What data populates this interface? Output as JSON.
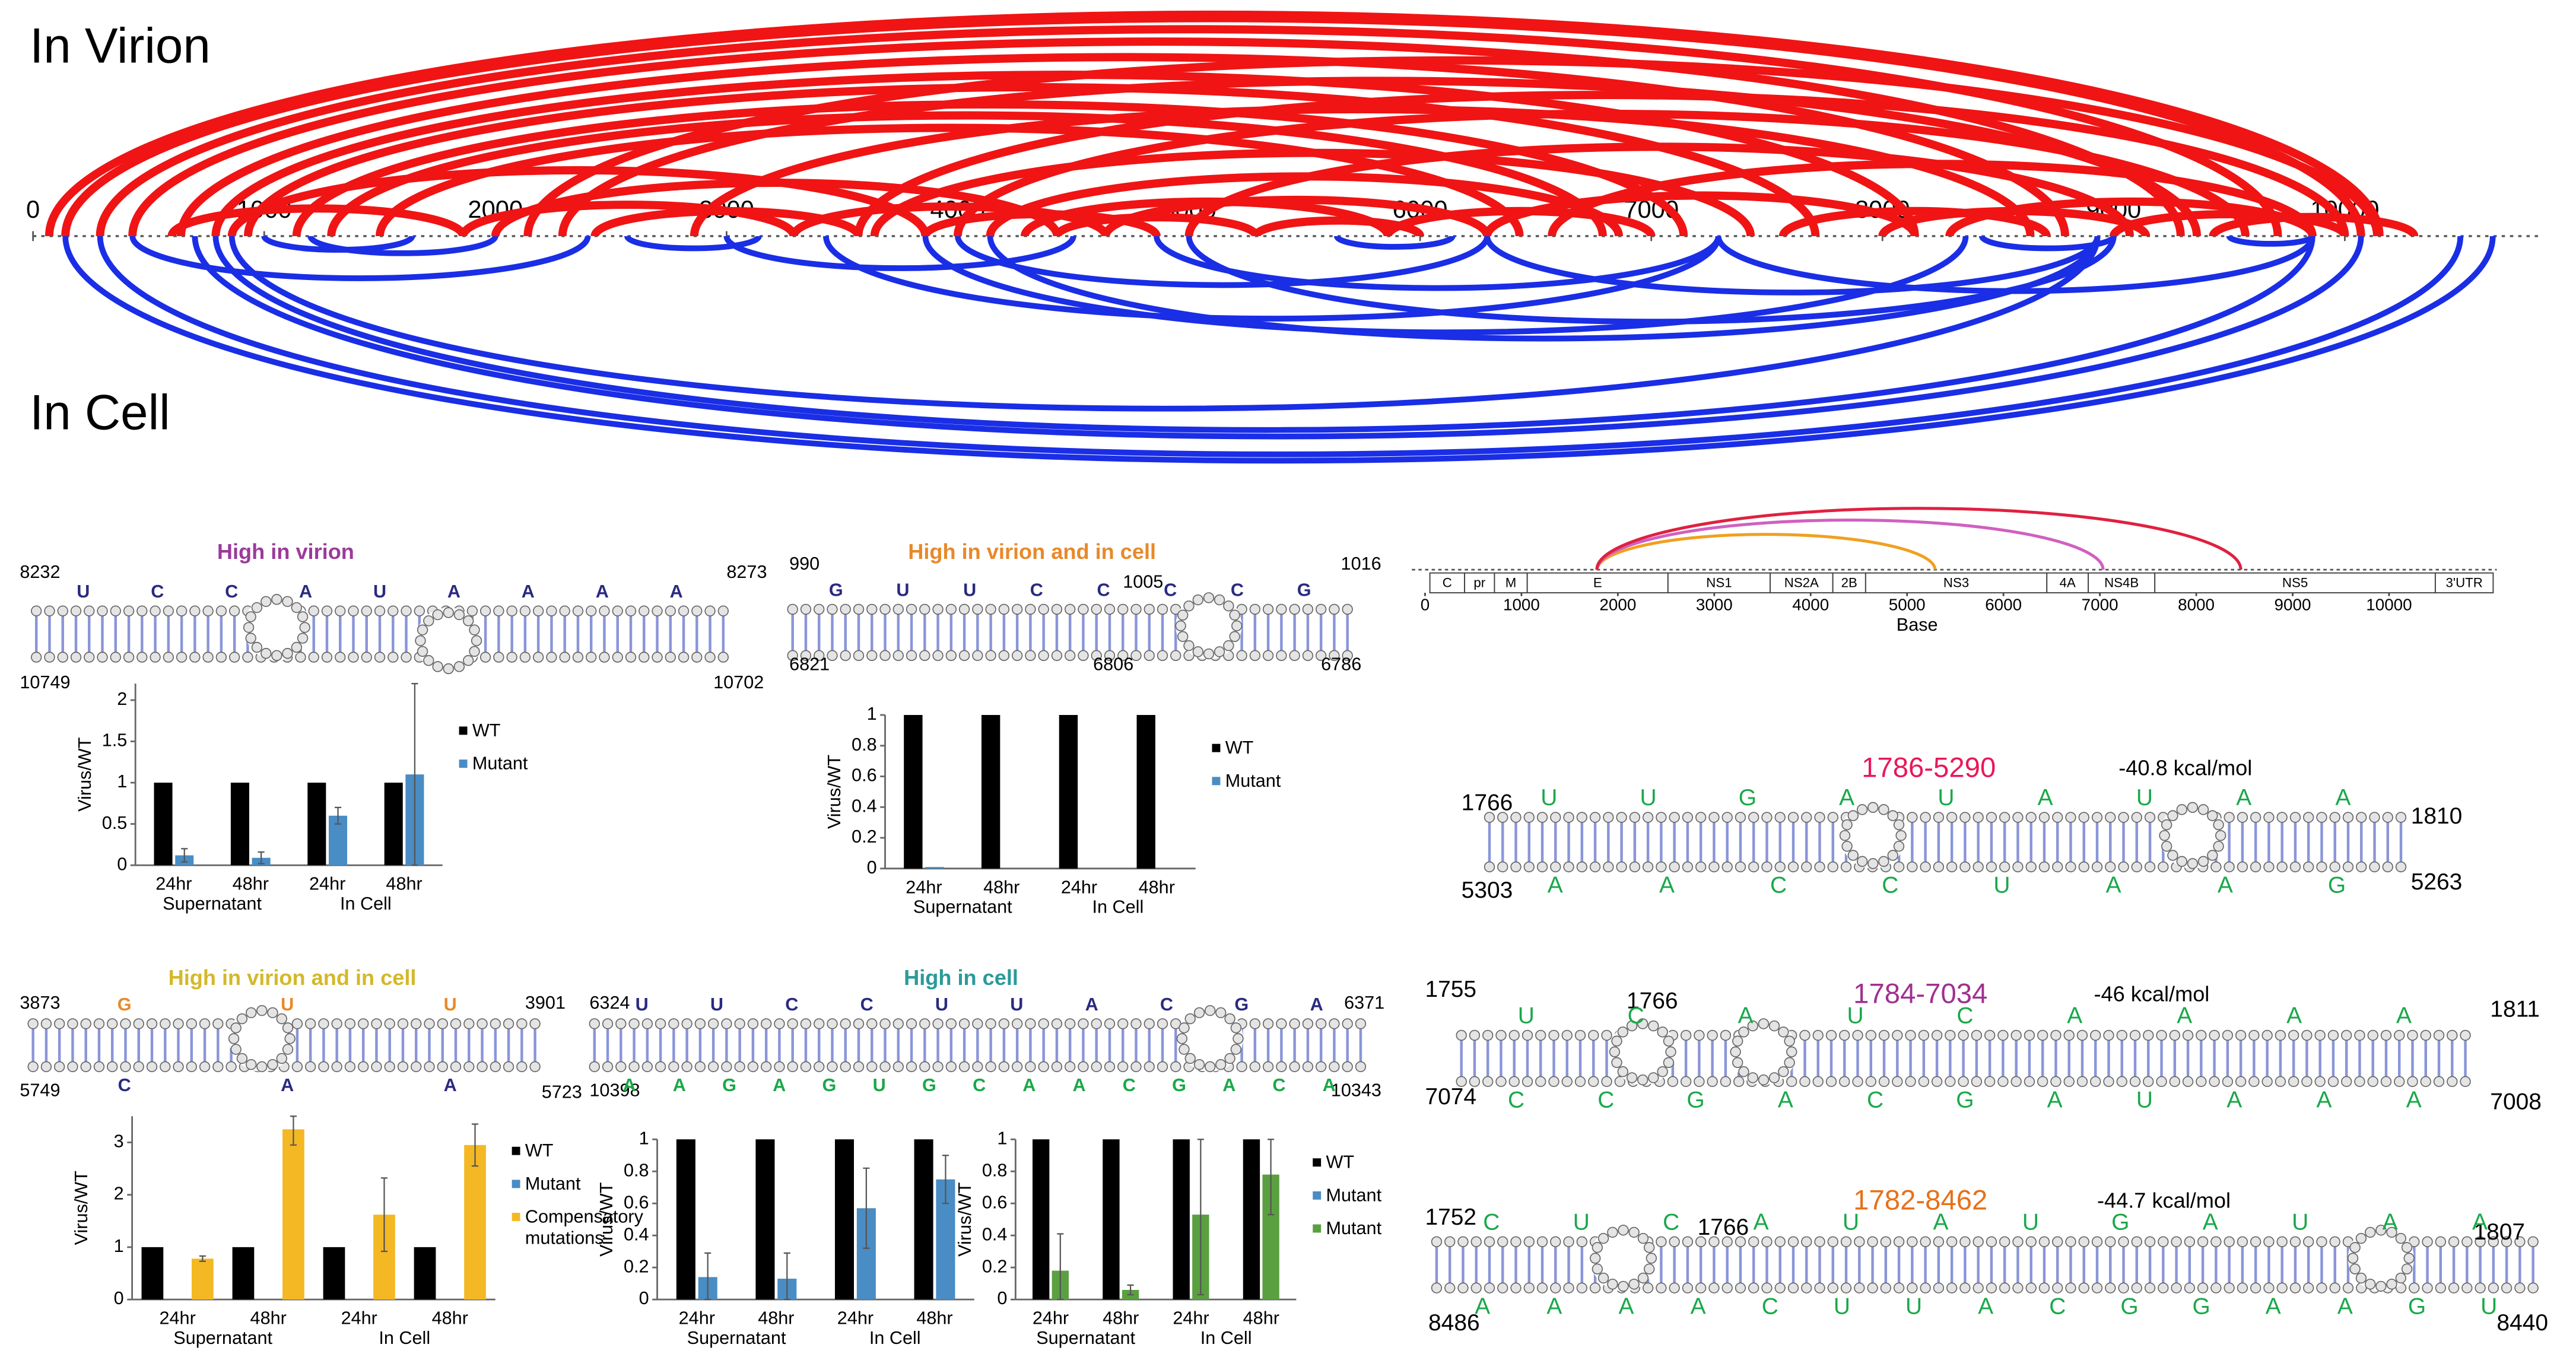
{
  "arc_diagram": {
    "title_top": "In Virion",
    "title_bottom": "In Cell",
    "xlim": [
      0,
      10800
    ],
    "xticks": [
      0,
      1000,
      2000,
      3000,
      4000,
      5000,
      6000,
      7000,
      8000,
      9000,
      10000
    ],
    "virion_color": "#f01414",
    "cell_color": "#1a2ee6",
    "virion_arcs": [
      [
        70,
        10150
      ],
      [
        140,
        10070
      ],
      [
        290,
        9710
      ],
      [
        430,
        9290
      ],
      [
        640,
        8790
      ],
      [
        790,
        8140
      ],
      [
        930,
        7710
      ],
      [
        1140,
        7140
      ],
      [
        1290,
        6790
      ],
      [
        1500,
        6430
      ],
      [
        2140,
        10140
      ],
      [
        2290,
        9360
      ],
      [
        2860,
        8640
      ],
      [
        3570,
        10000
      ],
      [
        3640,
        7430
      ],
      [
        4000,
        9570
      ],
      [
        4140,
        6860
      ],
      [
        4290,
        5860
      ],
      [
        4430,
        5290
      ],
      [
        600,
        1860
      ],
      [
        860,
        3860
      ],
      [
        1860,
        3290
      ],
      [
        2000,
        4430
      ],
      [
        2430,
        3570
      ],
      [
        3290,
        4640
      ],
      [
        3860,
        4860
      ],
      [
        4640,
        6290
      ],
      [
        5290,
        6000
      ],
      [
        5860,
        7000
      ],
      [
        6290,
        8140
      ],
      [
        7570,
        8710
      ],
      [
        8000,
        9140
      ],
      [
        8290,
        9860
      ],
      [
        9000,
        10000
      ],
      [
        9430,
        10300
      ],
      [
        6570,
        9860
      ],
      [
        5000,
        9070
      ]
    ],
    "cell_arcs": [
      [
        140,
        10640
      ],
      [
        290,
        10500
      ],
      [
        700,
        10070
      ],
      [
        790,
        9860
      ],
      [
        860,
        8930
      ],
      [
        430,
        2400
      ],
      [
        3430,
        7290
      ],
      [
        4000,
        6290
      ],
      [
        3860,
        8360
      ],
      [
        4140,
        8930
      ],
      [
        4860,
        7290
      ],
      [
        5000,
        9000
      ],
      [
        6290,
        8930
      ],
      [
        7290,
        9860
      ],
      [
        8430,
        9000
      ],
      [
        2570,
        3140
      ],
      [
        1000,
        1640
      ],
      [
        5640,
        6140
      ],
      [
        9500,
        9860
      ],
      [
        1200,
        2000
      ],
      [
        3000,
        4500
      ]
    ]
  },
  "structures": [
    {
      "title": "High in virion",
      "title_color": "#9b3a9b",
      "positions": [
        8232,
        8273,
        10749,
        10702
      ],
      "top_letters": [
        "U",
        "C",
        "C",
        "A",
        "U",
        "A",
        "A",
        "A",
        "A"
      ],
      "top_color": "#2a2a80",
      "bottom_letters": [],
      "bottom_color": "#2a2a80"
    },
    {
      "title": "High in virion and in cell",
      "title_color": "#e8892a",
      "positions": [
        990,
        1016,
        6821,
        6786,
        1005,
        6806
      ],
      "top_letters": [
        "G",
        "U",
        "U",
        "C",
        "C",
        "C",
        "C",
        "G"
      ],
      "top_color": "#2a2a80",
      "bottom_letters": [],
      "bottom_color": "#2a2a80"
    },
    {
      "title": "High in virion and in cell",
      "title_color": "#d4b82a",
      "positions": [
        3873,
        3901,
        5749,
        5723
      ],
      "top_letters": [
        "G",
        "U",
        "U"
      ],
      "top_color": "#e8892a",
      "bottom_letters": [
        "C",
        "A",
        "A"
      ],
      "bottom_color": "#2a2a80"
    },
    {
      "title": "High in cell",
      "title_color": "#2a9a9a",
      "positions": [
        6324,
        6371,
        10398,
        10343
      ],
      "top_letters": [
        "U",
        "U",
        "C",
        "C",
        "U",
        "U",
        "A",
        "C",
        "G",
        "A"
      ],
      "top_color": "#2a2a80",
      "bottom_letters": [
        "A",
        "A",
        "G",
        "A",
        "G",
        "U",
        "G",
        "C",
        "A",
        "A",
        "C",
        "G",
        "A",
        "C",
        "A"
      ],
      "bottom_color": "#1aa84a"
    },
    {
      "title": "1786-5290",
      "energy": "-40.8 kcal/mol",
      "title_color": "#e8185a",
      "positions": [
        1766,
        1810,
        5303,
        5263
      ],
      "top_letters": [
        "U",
        "U",
        "G",
        "A",
        "U",
        "A",
        "U",
        "A",
        "A"
      ],
      "top_color": "#1aa84a",
      "bottom_letters": [
        "A",
        "A",
        "C",
        "C",
        "U",
        "A",
        "A",
        "G"
      ],
      "bottom_color": "#1aa84a"
    },
    {
      "title": "1784-7034",
      "energy": "-46 kcal/mol",
      "title_color": "#a03090",
      "positions": [
        1755,
        1811,
        7074,
        7008,
        1766
      ],
      "top_letters": [
        "U",
        "C",
        "A",
        "U",
        "C",
        "A",
        "A",
        "A",
        "A"
      ],
      "top_color": "#1aa84a",
      "bottom_letters": [
        "C",
        "C",
        "G",
        "A",
        "C",
        "G",
        "A",
        "U",
        "A",
        "A",
        "A"
      ],
      "bottom_color": "#1aa84a"
    },
    {
      "title": "1782-8462",
      "energy": "-44.7 kcal/mol",
      "title_color": "#e8701a",
      "positions": [
        1752,
        1807,
        8486,
        8440,
        1766
      ],
      "top_letters": [
        "C",
        "U",
        "C",
        "A",
        "U",
        "A",
        "U",
        "G",
        "A",
        "U",
        "A",
        "A"
      ],
      "top_color": "#1aa84a",
      "bottom_letters": [
        "A",
        "A",
        "A",
        "A",
        "C",
        "U",
        "U",
        "A",
        "C",
        "G",
        "G",
        "A",
        "A",
        "G",
        "U"
      ],
      "bottom_color": "#1aa84a"
    }
  ],
  "chart_data": [
    {
      "type": "bar",
      "categories": [
        "24hr",
        "48hr",
        "24hr",
        "48hr"
      ],
      "groups": [
        "Supernatant",
        "In Cell"
      ],
      "ylabel": "Virus/WT",
      "ylim": [
        0,
        2.2
      ],
      "yticks": [
        0,
        0.5,
        1,
        1.5,
        2
      ],
      "legend": "right",
      "series": [
        {
          "name": "WT",
          "color": "#000000",
          "values": [
            1,
            1,
            1,
            1
          ]
        },
        {
          "name": "Mutant",
          "color": "#4a8cc4",
          "values": [
            0.12,
            0.09,
            0.6,
            1.1
          ],
          "errors": [
            0.08,
            0.07,
            0.1,
            1.1
          ]
        }
      ]
    },
    {
      "type": "bar",
      "categories": [
        "24hr",
        "48hr",
        "24hr",
        "48hr"
      ],
      "groups": [
        "Supernatant",
        "In Cell"
      ],
      "ylabel": "Virus/WT",
      "ylim": [
        0,
        1
      ],
      "yticks": [
        0,
        0.2,
        0.4,
        0.6,
        0.8,
        1
      ],
      "legend": "right",
      "series": [
        {
          "name": "WT",
          "color": "#000000",
          "values": [
            1,
            1,
            1,
            1
          ]
        },
        {
          "name": "Mutant",
          "color": "#4a8cc4",
          "values": [
            0.01,
            0,
            0,
            0
          ]
        }
      ]
    },
    {
      "type": "bar",
      "categories": [
        "24hr",
        "48hr",
        "24hr",
        "48hr"
      ],
      "groups": [
        "Supernatant",
        "In Cell"
      ],
      "ylabel": "Virus/WT",
      "ylim": [
        0,
        3.5
      ],
      "yticks": [
        0,
        1,
        2,
        3
      ],
      "legend": "right",
      "series": [
        {
          "name": "WT",
          "color": "#000000",
          "values": [
            1,
            1,
            1,
            1
          ]
        },
        {
          "name": "Mutant",
          "color": "#4a8cc4",
          "values": [
            0,
            0,
            0,
            0
          ]
        },
        {
          "name": "Compensatory mutations",
          "color": "#f4b824",
          "values": [
            0.78,
            3.25,
            1.62,
            2.95
          ],
          "errors": [
            0.05,
            0.3,
            0.7,
            0.4
          ]
        }
      ]
    },
    {
      "type": "bar",
      "categories": [
        "24hr",
        "48hr",
        "24hr",
        "48hr"
      ],
      "groups": [
        "Supernatant",
        "In Cell"
      ],
      "ylabel": "Virus/WT",
      "ylim": [
        0,
        1
      ],
      "yticks": [
        0,
        0.2,
        0.4,
        0.6,
        0.8,
        1
      ],
      "legend": "shared",
      "series": [
        {
          "name": "WT",
          "color": "#000000",
          "values": [
            1,
            1,
            1,
            1
          ]
        },
        {
          "name": "Mutant",
          "color": "#4a8cc4",
          "values": [
            0.14,
            0.13,
            0.57,
            0.75
          ],
          "errors": [
            0.15,
            0.16,
            0.25,
            0.15
          ]
        }
      ]
    },
    {
      "type": "bar",
      "categories": [
        "24hr",
        "48hr",
        "24hr",
        "48hr"
      ],
      "groups": [
        "Supernatant",
        "In Cell"
      ],
      "ylabel": "Virus/WT",
      "ylim": [
        0,
        1
      ],
      "yticks": [
        0,
        0.2,
        0.4,
        0.6,
        0.8,
        1
      ],
      "legend": "shared",
      "series": [
        {
          "name": "WT",
          "color": "#000000",
          "values": [
            1,
            1,
            1,
            1
          ]
        },
        {
          "name": "Mutant",
          "color": "#5aa040",
          "values": [
            0.18,
            0.06,
            0.53,
            0.78
          ],
          "errors": [
            0.23,
            0.03,
            0.5,
            0.25
          ]
        }
      ]
    }
  ],
  "genome_map": {
    "xlim": [
      0,
      11100
    ],
    "xticks": [
      0,
      1000,
      2000,
      3000,
      4000,
      5000,
      6000,
      7000,
      8000,
      9000,
      10000
    ],
    "xlabel": "Base",
    "segments": [
      {
        "label": "C",
        "start": 50,
        "end": 410
      },
      {
        "label": "pr",
        "start": 410,
        "end": 720
      },
      {
        "label": "M",
        "start": 720,
        "end": 1060
      },
      {
        "label": "E",
        "start": 1060,
        "end": 2520
      },
      {
        "label": "NS1",
        "start": 2520,
        "end": 3580
      },
      {
        "label": "NS2A",
        "start": 3580,
        "end": 4230
      },
      {
        "label": "2B",
        "start": 4230,
        "end": 4570
      },
      {
        "label": "NS3",
        "start": 4570,
        "end": 6450
      },
      {
        "label": "4A",
        "start": 6450,
        "end": 6880
      },
      {
        "label": "NS4B",
        "start": 6880,
        "end": 7570
      },
      {
        "label": "NS5",
        "start": 7570,
        "end": 10480
      },
      {
        "label": "3'UTR",
        "start": 10480,
        "end": 11080
      }
    ],
    "arcs": [
      {
        "start": 1786,
        "end": 5290,
        "color": "#f0a020"
      },
      {
        "start": 1784,
        "end": 7034,
        "color": "#d060c0"
      },
      {
        "start": 1782,
        "end": 8462,
        "color": "#e02040"
      }
    ]
  }
}
